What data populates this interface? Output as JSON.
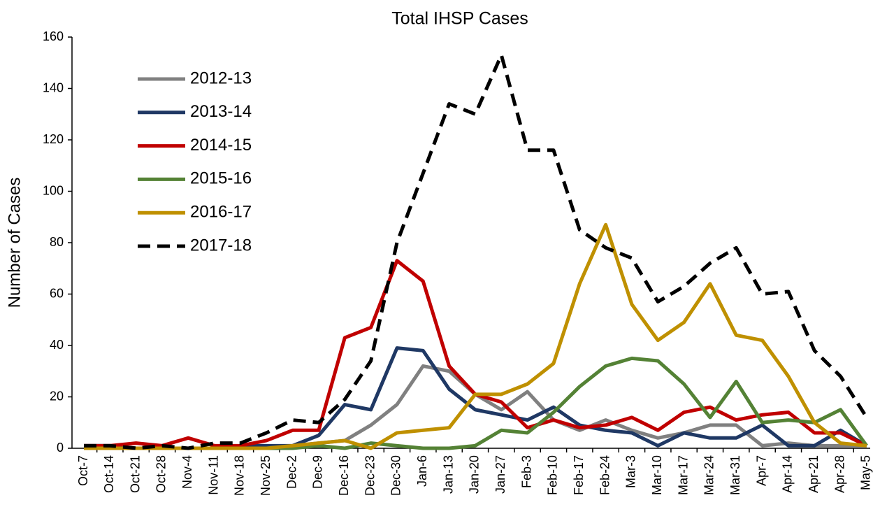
{
  "chart_data": {
    "type": "line",
    "title": "Total IHSP Cases",
    "y_label": "Number of Cases",
    "categories": [
      "Oct-7",
      "Oct-14",
      "Oct-21",
      "Oct-28",
      "Nov-4",
      "Nov-11",
      "Nov-18",
      "Nov-25",
      "Dec-2",
      "Dec-9",
      "Dec-16",
      "Dec-23",
      "Dec-30",
      "Jan-6",
      "Jan-13",
      "Jan-20",
      "Jan-27",
      "Feb-3",
      "Feb-10",
      "Feb-17",
      "Feb-24",
      "Mar-3",
      "Mar-10",
      "Mar-17",
      "Mar-24",
      "Mar-31",
      "Apr-7",
      "Apr-14",
      "Apr-21",
      "Apr-28",
      "May-5"
    ],
    "series": [
      {
        "name": "2012-13",
        "color": "#808080",
        "dashed": false,
        "values": [
          1,
          1,
          0,
          0,
          0,
          0,
          0,
          0,
          1,
          2,
          3,
          9,
          17,
          32,
          30,
          21,
          15,
          22,
          11,
          7,
          11,
          7,
          4,
          6,
          9,
          9,
          1,
          2,
          1,
          1,
          1
        ]
      },
      {
        "name": "2013-14",
        "color": "#1f3864",
        "dashed": false,
        "values": [
          1,
          1,
          0,
          0,
          0,
          0,
          1,
          1,
          1,
          5,
          17,
          15,
          39,
          38,
          23,
          15,
          13,
          11,
          16,
          9,
          7,
          6,
          1,
          6,
          4,
          4,
          9,
          1,
          1,
          7,
          1
        ]
      },
      {
        "name": "2014-15",
        "color": "#c00000",
        "dashed": false,
        "values": [
          1,
          1,
          2,
          1,
          4,
          1,
          1,
          3,
          7,
          7,
          43,
          47,
          73,
          65,
          32,
          21,
          18,
          8,
          11,
          8,
          9,
          12,
          7,
          14,
          16,
          11,
          13,
          14,
          6,
          6,
          1
        ]
      },
      {
        "name": "2015-16",
        "color": "#548235",
        "dashed": false,
        "values": [
          0,
          0,
          0,
          0,
          0,
          0,
          0,
          0,
          0,
          1,
          0,
          2,
          1,
          0,
          0,
          1,
          7,
          6,
          14,
          24,
          32,
          35,
          34,
          25,
          12,
          26,
          10,
          11,
          10,
          15,
          1
        ]
      },
      {
        "name": "2016-17",
        "color": "#bf9000",
        "dashed": false,
        "values": [
          0,
          0,
          0,
          0,
          0,
          0,
          0,
          0,
          1,
          2,
          3,
          0,
          6,
          7,
          8,
          21,
          21,
          25,
          33,
          64,
          87,
          56,
          42,
          49,
          64,
          44,
          42,
          28,
          10,
          2,
          1
        ]
      },
      {
        "name": "2017-18",
        "color": "#000000",
        "dashed": true,
        "values": [
          1,
          1,
          0,
          1,
          0,
          2,
          2,
          6,
          11,
          10,
          19,
          34,
          80,
          107,
          134,
          130,
          153,
          116,
          116,
          85,
          78,
          74,
          57,
          63,
          72,
          78,
          60,
          61,
          38,
          28,
          12
        ]
      }
    ],
    "ylim": [
      0,
      160
    ],
    "yticks": [
      0,
      20,
      40,
      60,
      80,
      100,
      120,
      140,
      160
    ],
    "grid": false
  }
}
